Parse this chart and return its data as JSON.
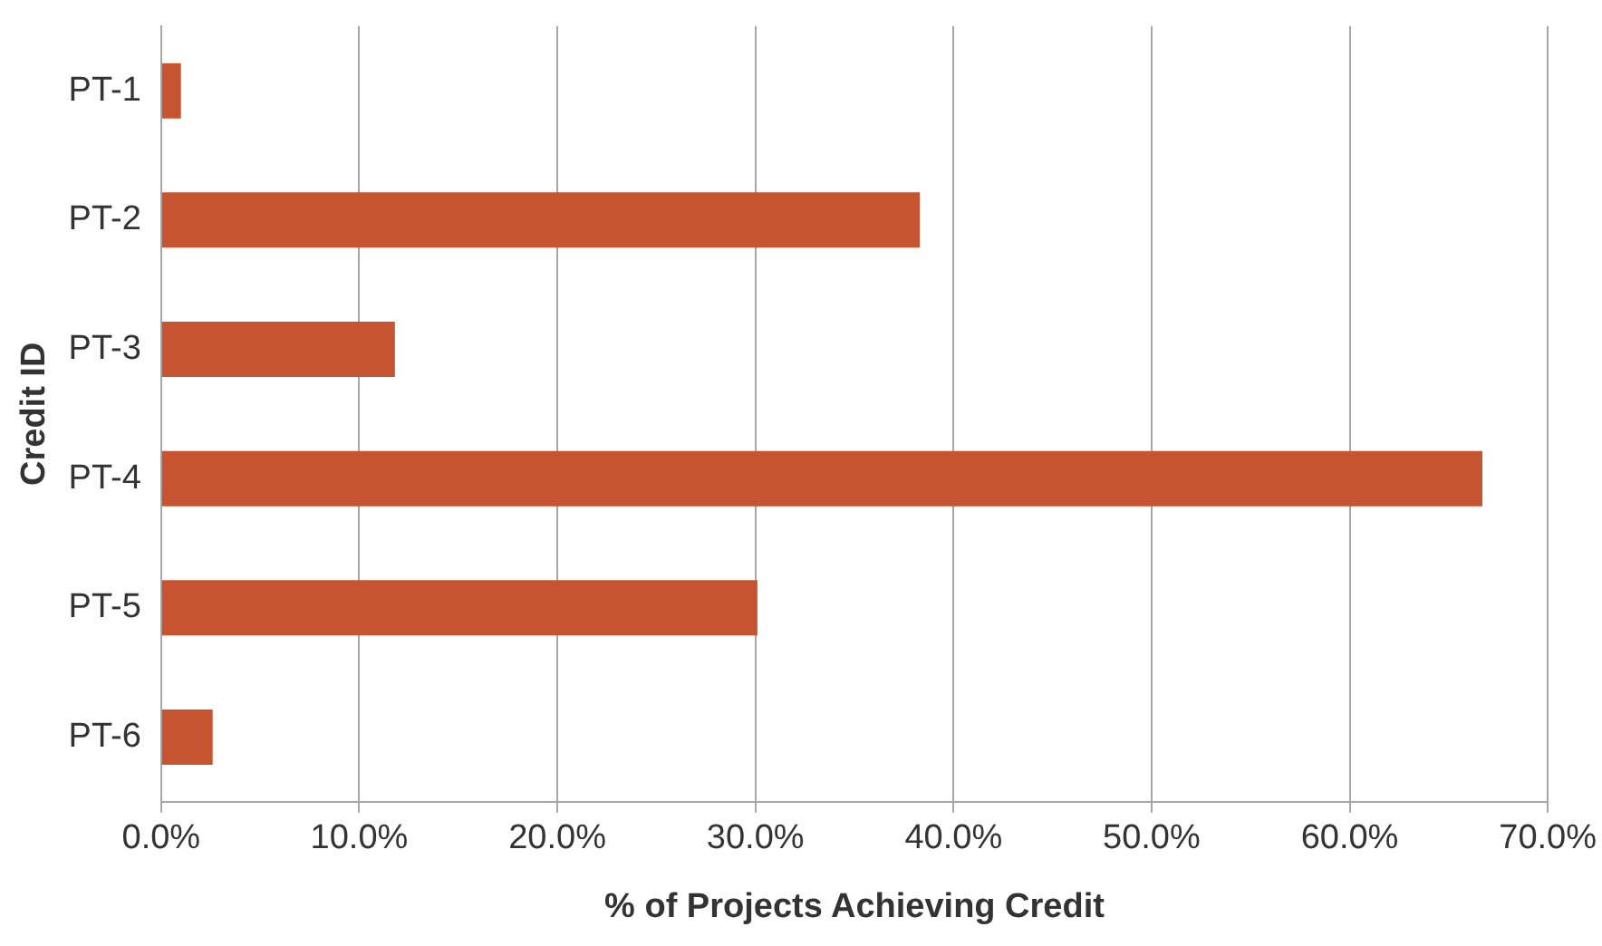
{
  "chart_data": {
    "type": "bar",
    "orientation": "horizontal",
    "xlabel": "% of Projects Achieving Credit",
    "ylabel": "Credit ID",
    "categories": [
      "PT-1",
      "PT-2",
      "PT-3",
      "PT-4",
      "PT-5",
      "PT-6"
    ],
    "values": [
      1.0,
      38.3,
      11.8,
      66.7,
      30.1,
      2.6
    ],
    "color": "#c75430",
    "xlim": [
      0,
      70
    ],
    "xticks": [
      {
        "value": 0,
        "label": "0.0%"
      },
      {
        "value": 10,
        "label": "10.0%"
      },
      {
        "value": 20,
        "label": "20.0%"
      },
      {
        "value": 30,
        "label": "30.0%"
      },
      {
        "value": 40,
        "label": "40.0%"
      },
      {
        "value": 50,
        "label": "50.0%"
      },
      {
        "value": 60,
        "label": "60.0%"
      },
      {
        "value": 70,
        "label": "70.0%"
      }
    ],
    "grid": "x",
    "legend": false
  }
}
